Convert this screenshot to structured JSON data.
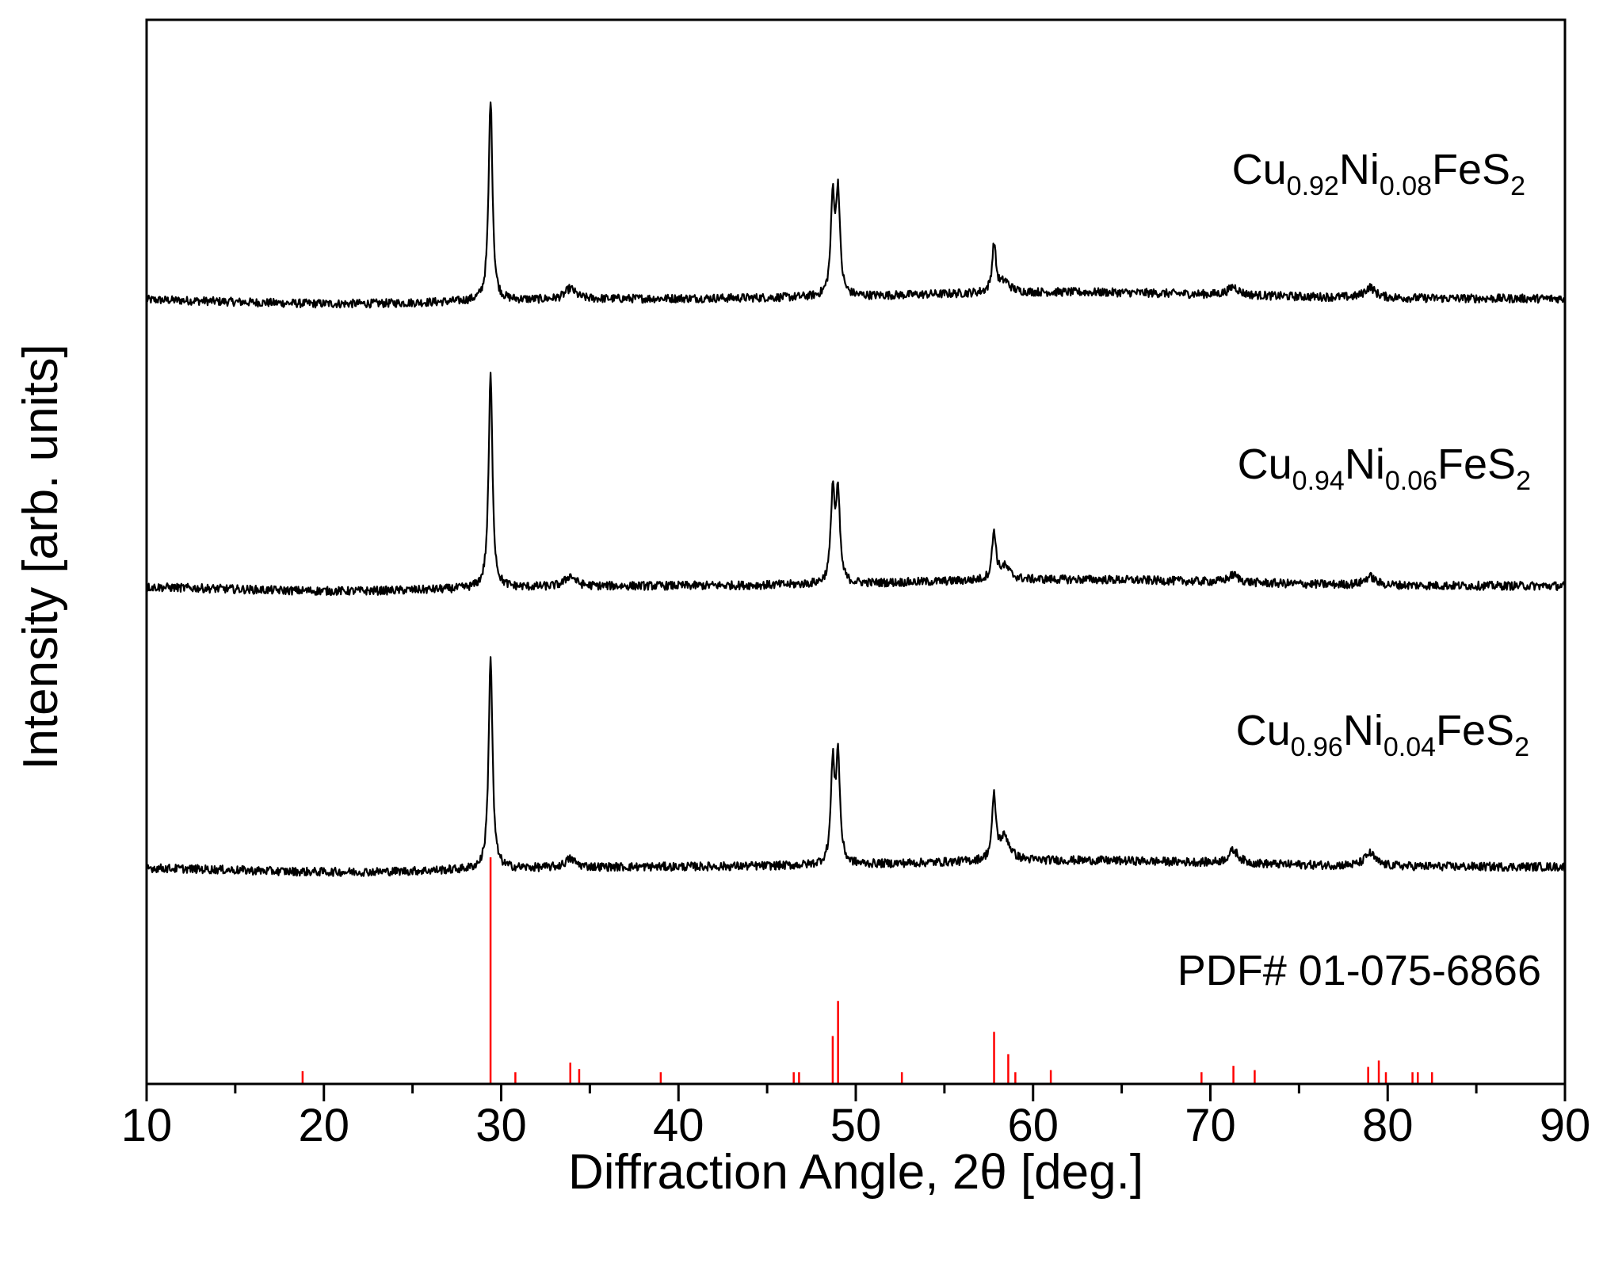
{
  "chart_data": {
    "type": "line",
    "title": "",
    "xlabel": "Diffraction Angle, 2θ [deg.]",
    "ylabel": "Intensity [arb. units]",
    "xlim": [
      10,
      90
    ],
    "xticks": [
      10,
      20,
      30,
      40,
      50,
      60,
      70,
      80,
      90
    ],
    "grid": false,
    "series": [
      {
        "name": "Cu0.92Ni0.08FeS2",
        "label": {
          "base1": "Cu",
          "sub1": "0.92",
          "base2": "Ni",
          "sub2": "0.08",
          "base3": "FeS",
          "sub3": "2"
        },
        "color": "#000000",
        "baseline": 0.738,
        "peaks": [
          [
            29.4,
            0.19
          ],
          [
            33.9,
            0.01
          ],
          [
            48.7,
            0.09
          ],
          [
            49.0,
            0.095
          ],
          [
            57.8,
            0.045
          ],
          [
            58.4,
            0.01
          ],
          [
            71.3,
            0.008
          ],
          [
            79.0,
            0.01
          ]
        ]
      },
      {
        "name": "Cu0.94Ni0.06FeS2",
        "label": {
          "base1": "Cu",
          "sub1": "0.94",
          "base2": "Ni",
          "sub2": "0.06",
          "base3": "FeS",
          "sub3": "2"
        },
        "color": "#000000",
        "baseline": 0.468,
        "peaks": [
          [
            29.4,
            0.2
          ],
          [
            33.9,
            0.01
          ],
          [
            48.7,
            0.085
          ],
          [
            49.0,
            0.08
          ],
          [
            57.8,
            0.045
          ],
          [
            58.4,
            0.012
          ],
          [
            71.3,
            0.007
          ],
          [
            79.0,
            0.008
          ]
        ]
      },
      {
        "name": "Cu0.96Ni0.04FeS2",
        "label": {
          "base1": "Cu",
          "sub1": "0.96",
          "base2": "Ni",
          "sub2": "0.04",
          "base3": "FeS",
          "sub3": "2"
        },
        "color": "#000000",
        "baseline": 0.204,
        "peaks": [
          [
            29.4,
            0.2
          ],
          [
            33.9,
            0.008
          ],
          [
            48.7,
            0.09
          ],
          [
            49.0,
            0.098
          ],
          [
            57.8,
            0.058
          ],
          [
            58.4,
            0.022
          ],
          [
            71.3,
            0.012
          ],
          [
            79.0,
            0.012
          ]
        ]
      },
      {
        "name": "PDF#  01-075-6866",
        "label": {
          "base1": "PDF#  01-075-6866"
        },
        "color": "#ff0000",
        "type": "stick",
        "sticks": [
          [
            18.8,
            0.012
          ],
          [
            29.4,
            0.213
          ],
          [
            30.8,
            0.011
          ],
          [
            33.9,
            0.02
          ],
          [
            34.4,
            0.014
          ],
          [
            39.0,
            0.011
          ],
          [
            46.5,
            0.011
          ],
          [
            46.8,
            0.011
          ],
          [
            48.7,
            0.045
          ],
          [
            49.0,
            0.078
          ],
          [
            52.6,
            0.011
          ],
          [
            57.8,
            0.049
          ],
          [
            58.6,
            0.028
          ],
          [
            59.0,
            0.011
          ],
          [
            61.0,
            0.013
          ],
          [
            69.5,
            0.011
          ],
          [
            71.3,
            0.017
          ],
          [
            72.5,
            0.013
          ],
          [
            78.9,
            0.016
          ],
          [
            79.5,
            0.022
          ],
          [
            79.9,
            0.011
          ],
          [
            81.4,
            0.011
          ],
          [
            81.7,
            0.011
          ],
          [
            82.5,
            0.011
          ]
        ]
      }
    ]
  }
}
